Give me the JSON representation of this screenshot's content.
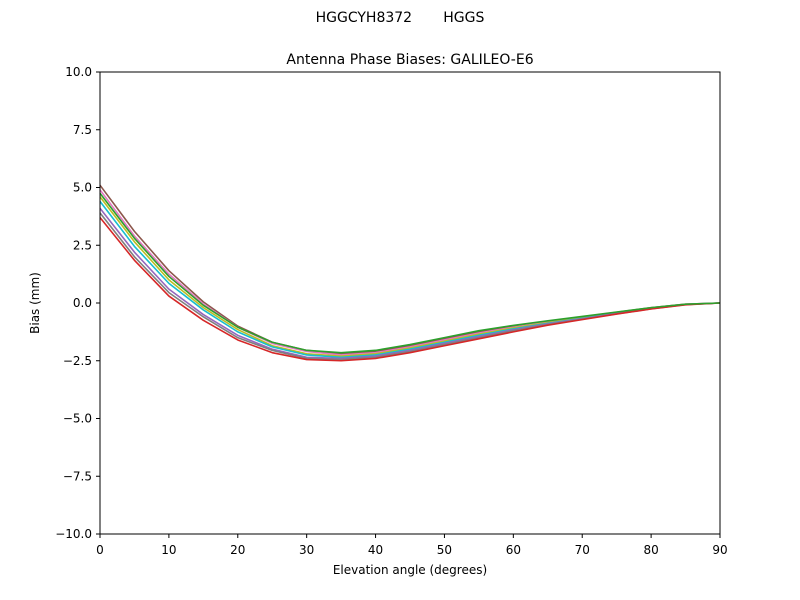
{
  "suptitle": "HGGCYH8372       HGGS",
  "chart_data": {
    "type": "line",
    "title": "Antenna Phase Biases: GALILEO-E6",
    "xlabel": "Elevation angle (degrees)",
    "ylabel": "Bias (mm)",
    "xlim": [
      0,
      90
    ],
    "ylim": [
      -10,
      10
    ],
    "xticks": [
      "0",
      "10",
      "20",
      "30",
      "40",
      "50",
      "60",
      "70",
      "80",
      "90"
    ],
    "yticks": [
      "10.0",
      "7.5",
      "5.0",
      "2.5",
      "0.0",
      "−2.5",
      "−5.0",
      "−7.5",
      "−10.0"
    ],
    "ytick_values": [
      10,
      7.5,
      5,
      2.5,
      0,
      -2.5,
      -5,
      -7.5,
      -10
    ],
    "grid": false,
    "x": [
      0,
      5,
      10,
      15,
      20,
      25,
      30,
      35,
      40,
      45,
      50,
      55,
      60,
      65,
      70,
      75,
      80,
      85,
      90
    ],
    "series": [
      {
        "color": "#8c564b",
        "values": [
          5.1,
          3.1,
          1.4,
          0.05,
          -1.0,
          -1.7,
          -2.05,
          -2.2,
          -2.1,
          -1.85,
          -1.55,
          -1.25,
          -1.0,
          -0.8,
          -0.6,
          -0.4,
          -0.2,
          -0.05,
          0.0
        ]
      },
      {
        "color": "#e377c2",
        "values": [
          4.9,
          2.9,
          1.25,
          -0.05,
          -1.05,
          -1.75,
          -2.1,
          -2.25,
          -2.15,
          -1.9,
          -1.6,
          -1.3,
          -1.05,
          -0.82,
          -0.62,
          -0.41,
          -0.21,
          -0.05,
          0.0
        ]
      },
      {
        "color": "#bcbd22",
        "values": [
          4.6,
          2.65,
          1.0,
          -0.2,
          -1.15,
          -1.85,
          -2.2,
          -2.3,
          -2.2,
          -1.95,
          -1.65,
          -1.35,
          -1.08,
          -0.85,
          -0.64,
          -0.42,
          -0.22,
          -0.06,
          0.0
        ]
      },
      {
        "color": "#17becf",
        "values": [
          4.4,
          2.45,
          0.85,
          -0.3,
          -1.25,
          -1.9,
          -2.25,
          -2.35,
          -2.25,
          -2.0,
          -1.7,
          -1.4,
          -1.12,
          -0.88,
          -0.66,
          -0.44,
          -0.23,
          -0.06,
          0.0
        ]
      },
      {
        "color": "#9467bd",
        "values": [
          4.1,
          2.2,
          0.6,
          -0.5,
          -1.4,
          -2.0,
          -2.35,
          -2.4,
          -2.3,
          -2.05,
          -1.75,
          -1.45,
          -1.16,
          -0.9,
          -0.68,
          -0.45,
          -0.24,
          -0.07,
          0.0
        ]
      },
      {
        "color": "#7f7f7f",
        "values": [
          3.9,
          2.0,
          0.45,
          -0.6,
          -1.5,
          -2.05,
          -2.4,
          -2.45,
          -2.35,
          -2.1,
          -1.8,
          -1.5,
          -1.2,
          -0.93,
          -0.7,
          -0.47,
          -0.25,
          -0.07,
          0.0
        ]
      },
      {
        "color": "#d62728",
        "values": [
          3.7,
          1.85,
          0.3,
          -0.75,
          -1.6,
          -2.15,
          -2.45,
          -2.5,
          -2.4,
          -2.15,
          -1.85,
          -1.55,
          -1.25,
          -0.96,
          -0.72,
          -0.48,
          -0.26,
          -0.08,
          0.0
        ]
      },
      {
        "color": "#2ca02c",
        "values": [
          4.75,
          2.8,
          1.15,
          -0.1,
          -1.05,
          -1.7,
          -2.05,
          -2.15,
          -2.05,
          -1.8,
          -1.5,
          -1.2,
          -0.97,
          -0.77,
          -0.58,
          -0.39,
          -0.2,
          -0.05,
          0.0
        ]
      }
    ]
  }
}
